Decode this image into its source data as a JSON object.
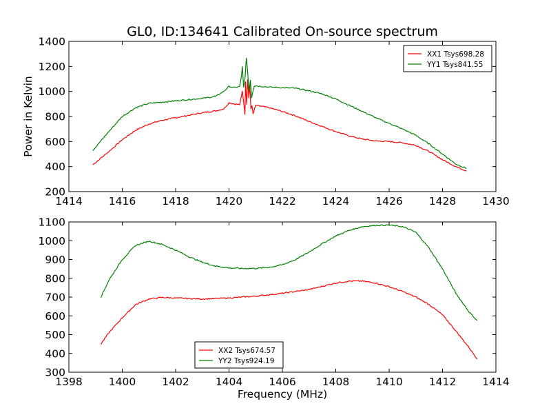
{
  "title": "GL0, ID:134641 Calibrated On-source spectrum",
  "colors": {
    "xx": "#ff0000",
    "yy": "#008000"
  },
  "chart_data": [
    {
      "type": "line",
      "xlim": [
        1414,
        1430
      ],
      "ylim": [
        200,
        1400
      ],
      "ylabel": "Power in Kelvin",
      "xlabel": "",
      "xticks": [
        "1414",
        "1416",
        "1418",
        "1420",
        "1422",
        "1424",
        "1426",
        "1428",
        "1430"
      ],
      "yticks": [
        "200",
        "400",
        "600",
        "800",
        "1000",
        "1200",
        "1400"
      ],
      "legend": "top-right",
      "series": [
        {
          "name": "XX1 Tsys698.28",
          "key": "xx",
          "x": [
            1414.9,
            1415.5,
            1416.0,
            1416.5,
            1417.0,
            1417.5,
            1418.0,
            1418.5,
            1419.0,
            1419.5,
            1419.8,
            1420.0,
            1420.2,
            1420.4,
            1420.5,
            1420.6,
            1420.62,
            1420.66,
            1420.7,
            1420.74,
            1420.78,
            1420.82,
            1420.86,
            1420.9,
            1421.0,
            1421.5,
            1422.0,
            1422.5,
            1423.0,
            1423.5,
            1424.0,
            1424.5,
            1425.0,
            1425.5,
            1426.0,
            1426.5,
            1427.0,
            1427.5,
            1428.0,
            1428.5,
            1428.9
          ],
          "y": [
            415,
            520,
            615,
            690,
            740,
            770,
            790,
            810,
            830,
            845,
            860,
            910,
            900,
            895,
            1000,
            820,
            1080,
            900,
            1100,
            950,
            1050,
            860,
            890,
            820,
            890,
            870,
            840,
            805,
            760,
            720,
            680,
            645,
            620,
            605,
            600,
            590,
            570,
            520,
            455,
            400,
            365
          ]
        },
        {
          "name": "YY1 Tsys841.55",
          "key": "yy",
          "x": [
            1414.9,
            1415.5,
            1416.0,
            1416.5,
            1417.0,
            1417.5,
            1418.0,
            1418.5,
            1419.0,
            1419.5,
            1419.8,
            1420.0,
            1420.2,
            1420.4,
            1420.45,
            1420.5,
            1420.55,
            1420.6,
            1420.65,
            1420.7,
            1420.75,
            1420.8,
            1420.85,
            1420.9,
            1420.95,
            1421.0,
            1421.5,
            1422.0,
            1422.5,
            1423.0,
            1423.5,
            1424.0,
            1424.5,
            1425.0,
            1425.5,
            1426.0,
            1426.5,
            1427.0,
            1427.5,
            1428.0,
            1428.5,
            1428.9
          ],
          "y": [
            530,
            680,
            800,
            870,
            905,
            915,
            925,
            935,
            945,
            960,
            1000,
            1040,
            1030,
            1040,
            1100,
            1195,
            1030,
            1100,
            1270,
            1150,
            1000,
            1090,
            950,
            1010,
            1045,
            1045,
            1035,
            1030,
            1025,
            1005,
            980,
            940,
            890,
            840,
            790,
            745,
            700,
            650,
            580,
            500,
            420,
            385
          ]
        }
      ]
    },
    {
      "type": "line",
      "xlim": [
        1398,
        1414
      ],
      "ylim": [
        300,
        1100
      ],
      "xlabel": "Frequency (MHz)",
      "ylabel": "",
      "xticks": [
        "1398",
        "1400",
        "1402",
        "1404",
        "1406",
        "1408",
        "1410",
        "1412",
        "1414"
      ],
      "yticks": [
        "300",
        "400",
        "500",
        "600",
        "700",
        "800",
        "900",
        "1000",
        "1100"
      ],
      "legend": "bottom-center",
      "series": [
        {
          "name": "XX2 Tsys674.57",
          "key": "xx",
          "x": [
            1399.2,
            1399.5,
            1400.0,
            1400.5,
            1401.0,
            1401.5,
            1402.0,
            1403.0,
            1404.0,
            1405.0,
            1406.0,
            1407.0,
            1408.0,
            1408.5,
            1409.0,
            1409.5,
            1410.0,
            1410.5,
            1411.0,
            1411.5,
            1412.0,
            1412.5,
            1413.0,
            1413.3
          ],
          "y": [
            450,
            510,
            590,
            660,
            690,
            698,
            695,
            690,
            695,
            705,
            720,
            740,
            775,
            785,
            785,
            775,
            755,
            730,
            700,
            660,
            605,
            520,
            430,
            370
          ]
        },
        {
          "name": "YY2 Tsys924.19",
          "key": "yy",
          "x": [
            1399.2,
            1399.5,
            1400.0,
            1400.5,
            1401.0,
            1401.5,
            1402.0,
            1402.5,
            1403.0,
            1403.5,
            1404.0,
            1404.5,
            1405.0,
            1405.5,
            1406.0,
            1406.5,
            1407.0,
            1407.5,
            1408.0,
            1408.5,
            1409.0,
            1409.5,
            1410.0,
            1410.5,
            1411.0,
            1411.5,
            1412.0,
            1412.5,
            1413.0,
            1413.3
          ],
          "y": [
            700,
            790,
            900,
            975,
            998,
            980,
            950,
            915,
            885,
            865,
            855,
            852,
            853,
            858,
            872,
            900,
            940,
            985,
            1025,
            1055,
            1075,
            1082,
            1083,
            1075,
            1045,
            960,
            850,
            720,
            620,
            575
          ]
        }
      ]
    }
  ]
}
